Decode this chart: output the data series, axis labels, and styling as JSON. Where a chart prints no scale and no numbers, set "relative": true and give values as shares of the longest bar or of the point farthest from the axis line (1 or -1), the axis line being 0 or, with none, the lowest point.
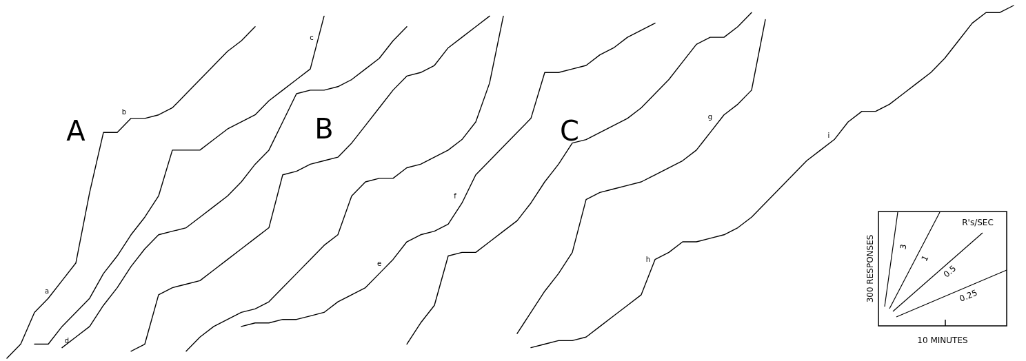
{
  "chart_data": [
    {
      "type": "line",
      "relative": true,
      "tick_labels": false,
      "line_style": "solid",
      "categories": [
        null,
        null,
        null,
        null,
        null,
        null,
        null,
        null,
        null,
        null,
        null,
        null,
        null,
        null,
        null,
        null,
        null,
        null,
        null,
        null,
        null,
        null,
        null,
        null,
        null,
        null,
        null,
        null,
        null,
        null,
        null,
        null,
        null,
        null,
        null,
        null,
        null,
        null,
        null,
        null,
        null,
        null,
        null,
        null,
        null,
        null,
        null,
        null,
        null,
        null,
        null,
        null,
        null,
        null,
        null,
        null,
        null,
        null,
        null,
        null,
        null,
        null,
        null,
        null,
        null,
        null,
        null,
        null,
        null,
        null,
        null,
        null,
        null,
        null
      ],
      "series": [
        {
          "color": "#000000",
          "values": [
            0,
            0.04,
            0.13,
            0.17,
            0.22,
            0.27,
            0.47,
            0.64,
            0.64,
            0.68,
            0.68,
            0.69,
            0.71,
            0.75,
            0.79,
            0.83,
            0.87,
            0.9,
            0.94,
            null,
            null,
            null,
            null,
            null,
            null,
            null,
            null,
            null,
            null,
            null,
            null,
            null,
            null,
            null,
            null,
            null,
            null,
            null,
            null,
            null,
            null,
            null,
            null,
            null,
            null,
            null,
            null,
            null,
            null,
            null,
            null,
            null,
            null,
            null,
            null,
            null,
            null,
            null,
            null,
            null,
            null,
            null,
            null,
            null,
            null,
            null,
            null,
            null,
            null,
            null,
            null,
            null,
            null,
            null
          ]
        },
        {
          "color": "#000000",
          "values": [
            null,
            null,
            0.04,
            0.04,
            0.09,
            0.13,
            0.17,
            0.24,
            0.29,
            0.35,
            0.4,
            0.46,
            0.59,
            0.59,
            0.59,
            0.62,
            0.65,
            0.67,
            0.69,
            0.73,
            0.76,
            0.79,
            0.82,
            0.97,
            null,
            null,
            null,
            null,
            null,
            null,
            null,
            null,
            null,
            null,
            null,
            null,
            null,
            null,
            null,
            null,
            null,
            null,
            null,
            null,
            null,
            null,
            null,
            null,
            null,
            null,
            null,
            null,
            null,
            null,
            null,
            null,
            null,
            null,
            null,
            null,
            null,
            null,
            null,
            null,
            null,
            null,
            null,
            null,
            null,
            null,
            null,
            null,
            null,
            null
          ]
        },
        {
          "color": "#000000",
          "values": [
            null,
            null,
            null,
            null,
            0.03,
            0.06,
            0.09,
            0.15,
            0.2,
            0.26,
            0.31,
            0.35,
            0.36,
            0.37,
            0.4,
            0.43,
            0.46,
            0.5,
            0.55,
            0.59,
            0.67,
            0.75,
            0.76,
            0.76,
            0.77,
            0.79,
            0.82,
            0.85,
            0.9,
            0.94,
            null,
            null,
            null,
            null,
            null,
            null,
            null,
            null,
            null,
            null,
            null,
            null,
            null,
            null,
            null,
            null,
            null,
            null,
            null,
            null,
            null,
            null,
            null,
            null,
            null,
            null,
            null,
            null,
            null,
            null,
            null,
            null,
            null,
            null,
            null,
            null,
            null,
            null,
            null,
            null,
            null,
            null,
            null,
            null
          ]
        },
        {
          "color": "#000000",
          "values": [
            null,
            null,
            null,
            null,
            null,
            null,
            null,
            null,
            null,
            0.02,
            0.04,
            0.18,
            0.2,
            0.21,
            0.22,
            0.25,
            0.28,
            0.31,
            0.34,
            0.37,
            0.52,
            0.53,
            0.55,
            0.56,
            0.57,
            0.61,
            0.66,
            0.71,
            0.76,
            0.8,
            0.81,
            0.83,
            0.88,
            0.91,
            0.94,
            0.97,
            null,
            null,
            null,
            null,
            null,
            null,
            null,
            null,
            null,
            null,
            null,
            null,
            null,
            null,
            null,
            null,
            null,
            null,
            null,
            null,
            null,
            null,
            null,
            null,
            null,
            null,
            null,
            null,
            null,
            null,
            null,
            null,
            null,
            null,
            null,
            null,
            null,
            null
          ]
        },
        {
          "color": "#000000",
          "values": [
            null,
            null,
            null,
            null,
            null,
            null,
            null,
            null,
            null,
            null,
            null,
            null,
            null,
            0.02,
            0.06,
            0.09,
            0.11,
            0.13,
            0.14,
            0.16,
            0.2,
            0.24,
            0.28,
            0.32,
            0.35,
            0.46,
            0.5,
            0.51,
            0.51,
            0.54,
            0.55,
            0.57,
            0.59,
            0.62,
            0.67,
            0.78,
            0.97,
            null,
            null,
            null,
            null,
            null,
            null,
            null,
            null,
            null,
            null,
            null,
            null,
            null,
            null,
            null,
            null,
            null,
            null,
            null,
            null,
            null,
            null,
            null,
            null,
            null,
            null,
            null,
            null,
            null,
            null,
            null,
            null,
            null,
            null,
            null,
            null,
            null
          ]
        },
        {
          "color": "#000000",
          "values": [
            null,
            null,
            null,
            null,
            null,
            null,
            null,
            null,
            null,
            null,
            null,
            null,
            null,
            null,
            null,
            null,
            null,
            0.09,
            0.1,
            0.1,
            0.11,
            0.11,
            0.12,
            0.13,
            0.16,
            0.18,
            0.2,
            0.24,
            0.28,
            0.33,
            0.35,
            0.36,
            0.38,
            0.44,
            0.52,
            0.56,
            0.6,
            0.64,
            0.68,
            0.81,
            0.81,
            0.82,
            0.83,
            0.86,
            0.88,
            0.91,
            0.93,
            0.95,
            null,
            null,
            null,
            null,
            null,
            null,
            null,
            null,
            null,
            null,
            null,
            null,
            null,
            null,
            null,
            null,
            null,
            null,
            null,
            null,
            null,
            null,
            null,
            null,
            null,
            null
          ]
        },
        {
          "color": "#000000",
          "values": [
            null,
            null,
            null,
            null,
            null,
            null,
            null,
            null,
            null,
            null,
            null,
            null,
            null,
            null,
            null,
            null,
            null,
            null,
            null,
            null,
            null,
            null,
            null,
            null,
            null,
            null,
            null,
            null,
            null,
            0.04,
            0.1,
            0.15,
            0.29,
            0.3,
            0.3,
            0.33,
            0.36,
            0.39,
            0.44,
            0.5,
            0.55,
            0.61,
            0.62,
            0.64,
            0.66,
            0.68,
            0.71,
            0.75,
            0.79,
            0.84,
            0.89,
            0.91,
            0.91,
            0.94,
            0.98,
            null,
            null,
            null,
            null,
            null,
            null,
            null,
            null,
            null,
            null,
            null,
            null,
            null,
            null,
            null,
            null,
            null,
            null,
            null
          ]
        },
        {
          "color": "#000000",
          "values": [
            null,
            null,
            null,
            null,
            null,
            null,
            null,
            null,
            null,
            null,
            null,
            null,
            null,
            null,
            null,
            null,
            null,
            null,
            null,
            null,
            null,
            null,
            null,
            null,
            null,
            null,
            null,
            null,
            null,
            null,
            null,
            null,
            null,
            null,
            null,
            null,
            null,
            0.07,
            0.13,
            0.19,
            0.24,
            0.3,
            0.45,
            0.47,
            0.48,
            0.49,
            0.5,
            0.52,
            0.54,
            0.56,
            0.59,
            0.64,
            0.69,
            0.72,
            0.76,
            0.96,
            null,
            null,
            null,
            null,
            null,
            null,
            null,
            null,
            null,
            null,
            null,
            null,
            null,
            null,
            null,
            null,
            null,
            null
          ]
        },
        {
          "color": "#000000",
          "values": [
            null,
            null,
            null,
            null,
            null,
            null,
            null,
            null,
            null,
            null,
            null,
            null,
            null,
            null,
            null,
            null,
            null,
            null,
            null,
            null,
            null,
            null,
            null,
            null,
            null,
            null,
            null,
            null,
            null,
            null,
            null,
            null,
            null,
            null,
            null,
            null,
            null,
            null,
            0.03,
            0.04,
            0.05,
            0.05,
            0.06,
            0.09,
            0.12,
            0.15,
            0.18,
            0.28,
            0.3,
            0.33,
            0.33,
            0.34,
            0.35,
            0.37,
            0.4,
            0.44,
            0.48,
            0.52,
            0.56,
            0.59,
            0.62,
            0.67,
            0.7,
            0.7,
            0.72,
            0.75,
            0.78,
            0.81,
            0.85,
            0.9,
            0.95,
            0.98,
            0.98,
            1.0
          ]
        }
      ],
      "annotations": [
        "A",
        "B",
        "C",
        "a",
        "b",
        "c",
        "d",
        "e",
        "f",
        "g",
        "h",
        "i"
      ]
    },
    {
      "type": "other",
      "xlabel": "10 MINUTES",
      "ylabel": "300 RESPONSES",
      "annotations": [
        "R's/SEC",
        "3",
        "1",
        "0.5",
        "0.25"
      ]
    }
  ]
}
